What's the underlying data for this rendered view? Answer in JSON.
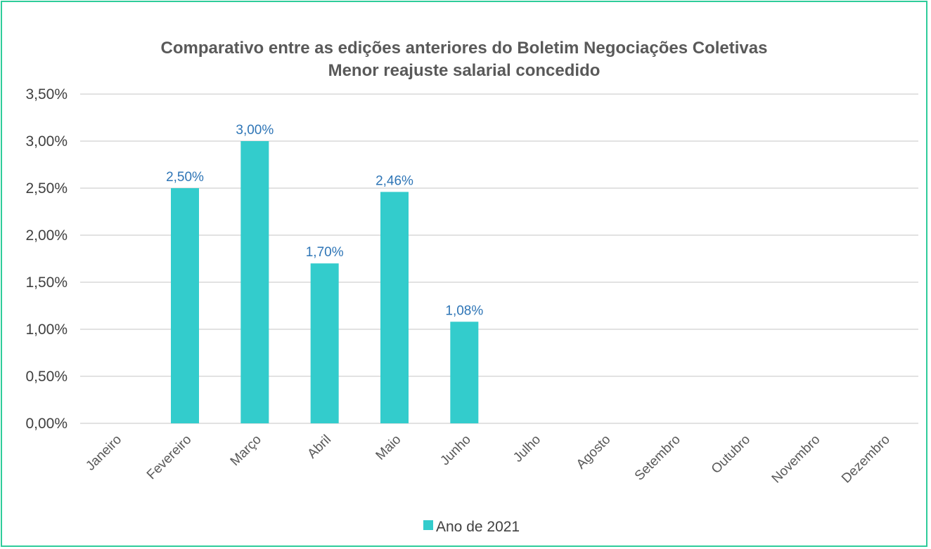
{
  "chart_data": {
    "type": "bar",
    "title": "Comparativo entre as edições anteriores do Boletim Negociações Coletivas",
    "subtitle": "Menor reajuste salarial concedido",
    "categories": [
      "Janeiro",
      "Fevereiro",
      "Março",
      "Abril",
      "Maio",
      "Junho",
      "Julho",
      "Agosto",
      "Setembro",
      "Outubro",
      "Novembro",
      "Dezembro"
    ],
    "series": [
      {
        "name": "Ano de 2021",
        "color": "#33cccc",
        "values": [
          null,
          2.5,
          3.0,
          1.7,
          2.46,
          1.08,
          null,
          null,
          null,
          null,
          null,
          null
        ],
        "labels": [
          null,
          "2,50%",
          "3,00%",
          "1,70%",
          "2,46%",
          "1,08%",
          null,
          null,
          null,
          null,
          null,
          null
        ]
      }
    ],
    "ylim": [
      0,
      3.5
    ],
    "yticks": [
      "0,00%",
      "0,50%",
      "1,00%",
      "1,50%",
      "2,00%",
      "2,50%",
      "3,00%",
      "3,50%"
    ],
    "grid": true,
    "legend": "bottom",
    "frame_color": "#2ecc9a",
    "label_color": "#2e75b6"
  }
}
